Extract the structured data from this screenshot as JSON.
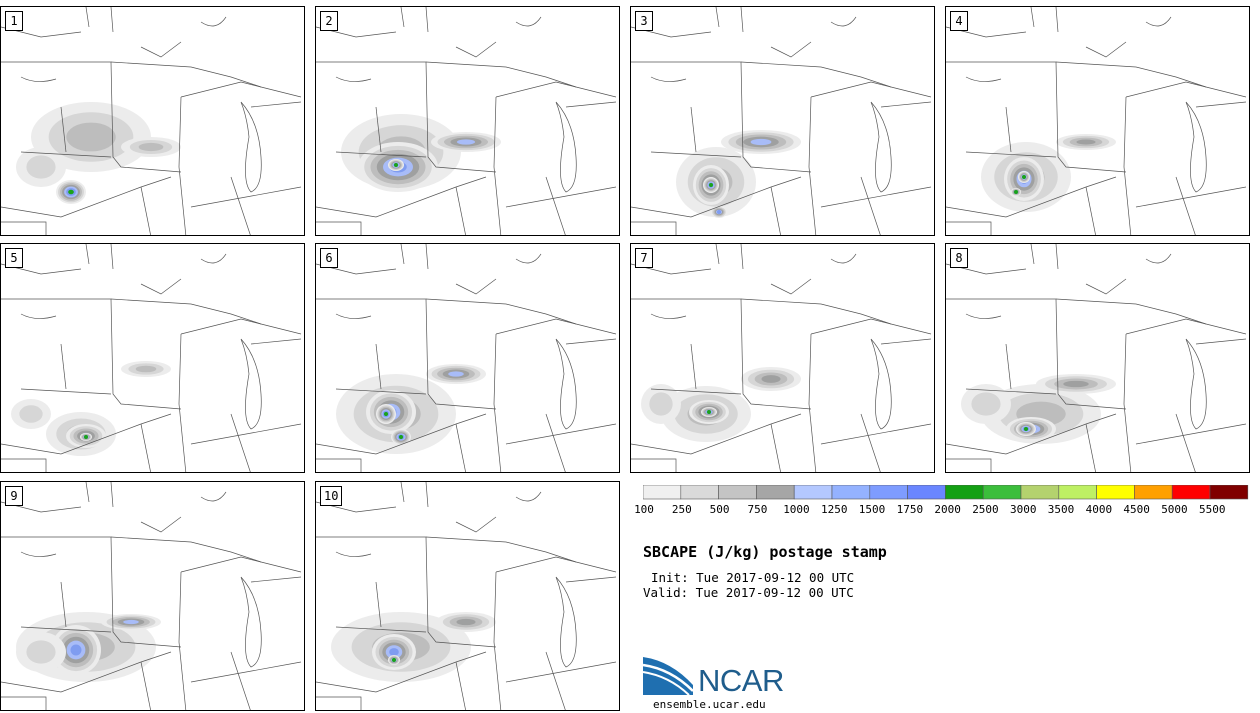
{
  "panels": [
    {
      "label": "1",
      "blobs": [
        [
          90,
          130,
          60,
          35,
          2
        ],
        [
          70,
          185,
          15,
          12,
          6
        ],
        [
          150,
          140,
          30,
          10,
          2
        ],
        [
          40,
          160,
          25,
          20,
          1
        ]
      ]
    },
    {
      "label": "2",
      "blobs": [
        [
          85,
          145,
          60,
          38,
          2
        ],
        [
          82,
          160,
          40,
          25,
          5
        ],
        [
          150,
          135,
          35,
          10,
          4
        ],
        [
          80,
          158,
          8,
          6,
          6
        ]
      ]
    },
    {
      "label": "3",
      "blobs": [
        [
          85,
          175,
          40,
          35,
          2
        ],
        [
          80,
          178,
          18,
          20,
          5
        ],
        [
          80,
          178,
          8,
          8,
          6
        ],
        [
          130,
          135,
          40,
          12,
          4
        ],
        [
          88,
          205,
          8,
          6,
          5
        ]
      ]
    },
    {
      "label": "4",
      "blobs": [
        [
          80,
          170,
          45,
          35,
          2
        ],
        [
          78,
          172,
          20,
          22,
          5
        ],
        [
          78,
          170,
          6,
          6,
          6
        ],
        [
          140,
          135,
          30,
          8,
          3
        ],
        [
          70,
          185,
          5,
          4,
          6
        ]
      ]
    },
    {
      "label": "5",
      "blobs": [
        [
          80,
          190,
          35,
          22,
          2
        ],
        [
          85,
          192,
          20,
          12,
          4
        ],
        [
          85,
          193,
          6,
          4,
          6
        ],
        [
          145,
          125,
          25,
          8,
          2
        ],
        [
          30,
          170,
          20,
          15,
          1
        ]
      ]
    },
    {
      "label": "6",
      "blobs": [
        [
          80,
          170,
          60,
          40,
          2
        ],
        [
          75,
          168,
          25,
          22,
          5
        ],
        [
          70,
          170,
          10,
          10,
          6
        ],
        [
          85,
          193,
          10,
          8,
          6
        ],
        [
          140,
          130,
          30,
          10,
          4
        ]
      ]
    },
    {
      "label": "7",
      "blobs": [
        [
          75,
          170,
          45,
          28,
          2
        ],
        [
          78,
          168,
          20,
          12,
          5
        ],
        [
          78,
          168,
          8,
          5,
          6
        ],
        [
          140,
          135,
          30,
          12,
          3
        ],
        [
          30,
          160,
          20,
          20,
          1
        ]
      ]
    },
    {
      "label": "8",
      "blobs": [
        [
          95,
          170,
          60,
          30,
          2
        ],
        [
          85,
          185,
          25,
          12,
          5
        ],
        [
          80,
          185,
          10,
          7,
          6
        ],
        [
          130,
          140,
          40,
          10,
          3
        ],
        [
          40,
          160,
          25,
          20,
          1
        ]
      ]
    },
    {
      "label": "9",
      "blobs": [
        [
          85,
          165,
          70,
          35,
          2
        ],
        [
          75,
          168,
          25,
          25,
          5
        ],
        [
          130,
          140,
          30,
          8,
          4
        ],
        [
          40,
          170,
          25,
          20,
          1
        ]
      ]
    },
    {
      "label": "10",
      "blobs": [
        [
          85,
          165,
          70,
          35,
          2
        ],
        [
          78,
          170,
          22,
          18,
          5
        ],
        [
          78,
          178,
          6,
          5,
          6
        ],
        [
          150,
          140,
          30,
          10,
          3
        ]
      ]
    }
  ],
  "colorbar": {
    "colors": [
      "#f0f0f0",
      "#dadada",
      "#c4c4c4",
      "#a6a6a6",
      "#b4c8ff",
      "#94b2ff",
      "#7e9cff",
      "#6a86ff",
      "#14a014",
      "#3cbe3c",
      "#b4d26e",
      "#bef064",
      "#ffff00",
      "#ffa000",
      "#ff0000",
      "#800000"
    ],
    "labels": [
      "100",
      "250",
      "500",
      "750",
      "1000",
      "1250",
      "1500",
      "1750",
      "2000",
      "2500",
      "3000",
      "3500",
      "4000",
      "4500",
      "5000",
      "5500"
    ]
  },
  "title": "SBCAPE (J/kg) postage stamp",
  "init": "Init: Tue 2017-09-12 00 UTC",
  "valid": "Valid: Tue 2017-09-12 00 UTC",
  "logo_text": "NCAR",
  "url": "ensemble.ucar.edu"
}
